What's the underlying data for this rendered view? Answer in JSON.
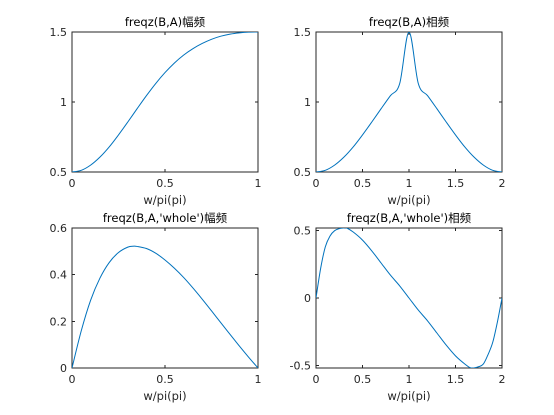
{
  "colors": {
    "line": "#0072BD",
    "axes": "#262626",
    "background": "#ffffff"
  },
  "chart_data": [
    {
      "type": "line",
      "title": "freqz(B,A)幅频",
      "xlabel": "w/pi(pi)",
      "ylabel": "",
      "xlim": [
        0,
        1
      ],
      "ylim": [
        0.5,
        1.5
      ],
      "xticks": [
        0,
        0.5,
        1
      ],
      "yticks": [
        0.5,
        1,
        1.5
      ],
      "grid": false,
      "series": [
        {
          "x": [
            0,
            0.05,
            0.1,
            0.15,
            0.2,
            0.25,
            0.3,
            0.35,
            0.4,
            0.45,
            0.5,
            0.55,
            0.6,
            0.65,
            0.7,
            0.75,
            0.8,
            0.85,
            0.9,
            0.95,
            1
          ],
          "values": [
            0.5,
            0.512,
            0.549,
            0.606,
            0.679,
            0.765,
            0.857,
            0.952,
            1.045,
            1.132,
            1.21,
            1.278,
            1.335,
            1.381,
            1.418,
            1.448,
            1.47,
            1.485,
            1.494,
            1.499,
            1.5
          ]
        }
      ]
    },
    {
      "type": "line",
      "title": "freqz(B,A)相频",
      "xlabel": "w/pi(pi)",
      "ylabel": "",
      "xlim": [
        0,
        2
      ],
      "ylim": [
        0.5,
        1.5
      ],
      "xticks": [
        0,
        0.5,
        1,
        1.5,
        2
      ],
      "yticks": [
        0.5,
        1,
        1.5
      ],
      "grid": false,
      "series": [
        {
          "x": [
            0,
            0.1,
            0.2,
            0.3,
            0.4,
            0.5,
            0.6,
            0.7,
            0.8,
            0.9,
            1,
            1.1,
            1.2,
            1.3,
            1.4,
            1.5,
            1.6,
            1.7,
            1.8,
            1.9,
            2
          ],
          "values": [
            0.5,
            0.512,
            0.549,
            0.606,
            0.679,
            0.765,
            0.857,
            0.952,
            1.045,
            1.132,
            1.5,
            1.132,
            1.045,
            0.952,
            0.857,
            0.765,
            0.679,
            0.606,
            0.549,
            0.512,
            0.5
          ]
        }
      ]
    },
    {
      "type": "line",
      "title": "freqz(B,A,'whole')幅频",
      "xlabel": "w/pi(pi)",
      "ylabel": "",
      "xlim": [
        0,
        1
      ],
      "ylim": [
        0,
        0.6
      ],
      "xticks": [
        0,
        0.5,
        1
      ],
      "yticks": [
        0,
        0.2,
        0.4,
        0.6
      ],
      "grid": false,
      "series": [
        {
          "x": [
            0,
            0.05,
            0.1,
            0.15,
            0.2,
            0.25,
            0.3,
            0.33,
            0.35,
            0.4,
            0.45,
            0.5,
            0.55,
            0.6,
            0.65,
            0.7,
            0.75,
            0.8,
            0.85,
            0.9,
            0.95,
            1
          ],
          "values": [
            0,
            0.16,
            0.29,
            0.385,
            0.452,
            0.495,
            0.518,
            0.522,
            0.521,
            0.512,
            0.492,
            0.463,
            0.428,
            0.388,
            0.343,
            0.295,
            0.245,
            0.194,
            0.144,
            0.094,
            0.046,
            0
          ]
        }
      ]
    },
    {
      "type": "line",
      "title": "freqz(B,A,'whole')相频",
      "xlabel": "w/pi(pi)",
      "ylabel": "",
      "xlim": [
        0,
        2
      ],
      "ylim": [
        -0.52,
        0.52
      ],
      "xticks": [
        0,
        0.5,
        1,
        1.5,
        2
      ],
      "yticks": [
        -0.5,
        0,
        0.5
      ],
      "grid": false,
      "series": [
        {
          "x": [
            0,
            0.05,
            0.1,
            0.15,
            0.2,
            0.25,
            0.3,
            0.33,
            0.4,
            0.5,
            0.6,
            0.7,
            0.8,
            0.9,
            1,
            1.1,
            1.2,
            1.3,
            1.4,
            1.5,
            1.6,
            1.67,
            1.75,
            1.8,
            1.85,
            1.9,
            1.95,
            2
          ],
          "values": [
            0,
            0.22,
            0.38,
            0.46,
            0.5,
            0.515,
            0.52,
            0.52,
            0.49,
            0.43,
            0.35,
            0.26,
            0.17,
            0.09,
            0,
            -0.09,
            -0.17,
            -0.26,
            -0.35,
            -0.43,
            -0.49,
            -0.52,
            -0.51,
            -0.49,
            -0.42,
            -0.33,
            -0.18,
            0
          ]
        }
      ]
    }
  ]
}
